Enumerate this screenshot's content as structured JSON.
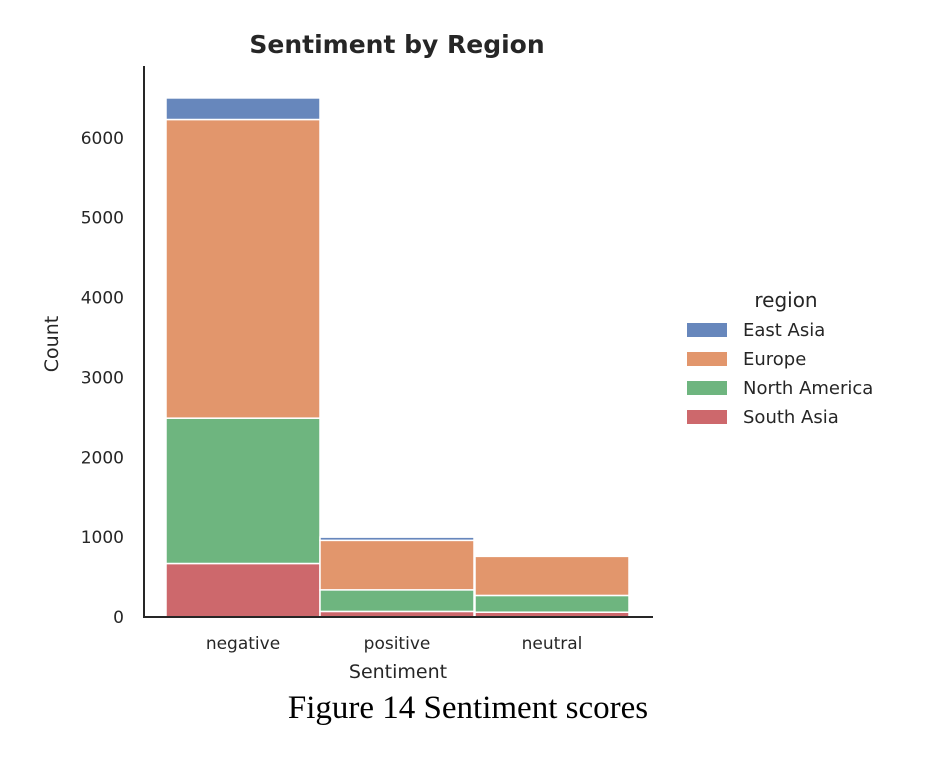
{
  "chart_data": {
    "type": "bar",
    "stacked": true,
    "title": "Sentiment by Region",
    "xlabel": "Sentiment",
    "ylabel": "Count",
    "ylim": [
      0,
      6900
    ],
    "yticks": [
      0,
      1000,
      2000,
      3000,
      4000,
      5000,
      6000
    ],
    "categories": [
      "negative",
      "positive",
      "neutral"
    ],
    "legend": {
      "title": "region",
      "placement": "right"
    },
    "grid": false,
    "series": [
      {
        "name": "South Asia",
        "color": "#c44e52",
        "values": [
          670,
          70,
          60
        ]
      },
      {
        "name": "North America",
        "color": "#55a868",
        "values": [
          1820,
          270,
          210
        ]
      },
      {
        "name": "Europe",
        "color": "#dd8452",
        "values": [
          3740,
          620,
          490
        ]
      },
      {
        "name": "East Asia",
        "color": "#4c72b0",
        "values": [
          270,
          40,
          10
        ]
      }
    ],
    "legend_order": [
      "East Asia",
      "Europe",
      "North America",
      "South Asia"
    ]
  },
  "caption": "Figure 14 Sentiment scores"
}
